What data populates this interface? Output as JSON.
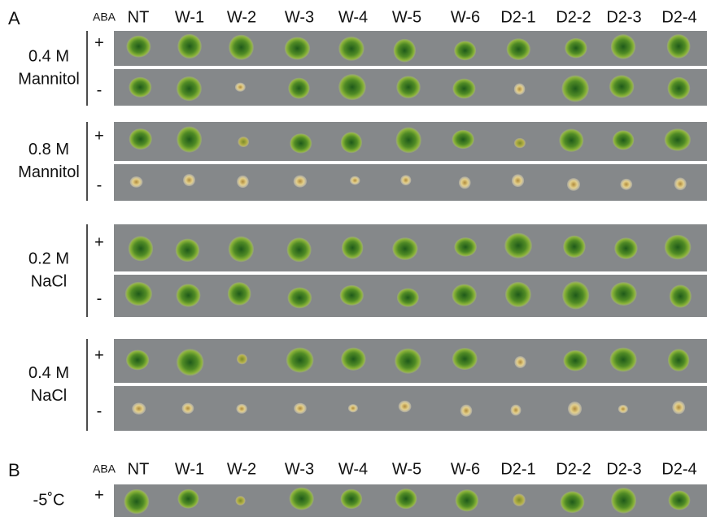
{
  "panel_a": {
    "label": "A",
    "aba_label": "ABA",
    "columns": [
      "NT",
      "W-1",
      "W-2",
      "W-3",
      "W-4",
      "W-5",
      "W-6",
      "D2-1",
      "D2-2",
      "D2-3",
      "D2-4"
    ],
    "groups": [
      {
        "condition": [
          "0.4 M",
          "Mannitol"
        ],
        "rows": [
          "+",
          "-"
        ]
      },
      {
        "condition": [
          "0.8 M",
          "Mannitol"
        ],
        "rows": [
          "+",
          "-"
        ]
      },
      {
        "condition": [
          "0.2 M",
          "NaCl"
        ],
        "rows": [
          "+",
          "-"
        ]
      },
      {
        "condition": [
          "0.4 M",
          "NaCl"
        ],
        "rows": [
          "+",
          "-"
        ]
      }
    ]
  },
  "panel_b": {
    "label": "B",
    "aba_label": "ABA",
    "columns": [
      "NT",
      "W-1",
      "W-2",
      "W-3",
      "W-4",
      "W-5",
      "W-6",
      "D2-1",
      "D2-2",
      "D2-3",
      "D2-4"
    ],
    "groups": [
      {
        "condition": [
          "-5˚C"
        ],
        "rows": [
          "+"
        ]
      }
    ]
  }
}
